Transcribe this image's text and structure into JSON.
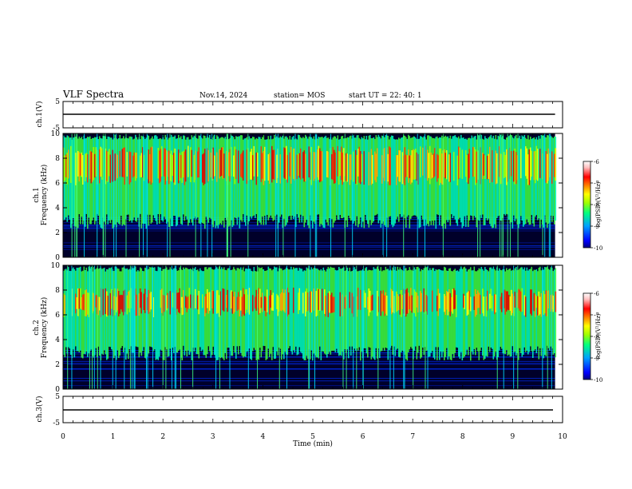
{
  "header": {
    "title": "VLF Spectra",
    "date": "Nov.14, 2024",
    "station": "station= MOS",
    "start": "start  UT  =   22: 40: 1"
  },
  "chart_data": [
    {
      "type": "line",
      "name": "ch1-waveform",
      "ylabel": "ch.1(V)",
      "ylim": [
        -5,
        5
      ],
      "y_ticks": [
        5,
        -5
      ],
      "x": [
        0,
        10
      ],
      "values": [
        0,
        0
      ]
    },
    {
      "type": "heatmap",
      "name": "ch1-spectrogram",
      "ylabel": "ch.1\nFrequency (kHz)",
      "ylabel_top": "ch.1",
      "ylabel_main": "Frequency (kHz)",
      "ylim": [
        0,
        10
      ],
      "y_ticks": [
        0,
        2,
        4,
        6,
        8,
        10
      ],
      "emission_band_khz": [
        3.5,
        9.5
      ],
      "hot_band_khz": [
        5.8,
        9.0
      ]
    },
    {
      "type": "heatmap",
      "name": "ch2-spectrogram",
      "ylabel_top": "ch.2",
      "ylabel_main": "Frequency (kHz)",
      "ylim": [
        0,
        10
      ],
      "y_ticks": [
        0,
        2,
        4,
        6,
        8,
        10
      ],
      "emission_band_khz": [
        3.5,
        9.5
      ],
      "hot_band_khz": [
        5.8,
        8.2
      ]
    },
    {
      "type": "line",
      "name": "ch3-waveform",
      "ylabel": "ch.3(V)",
      "ylim": [
        -5,
        5
      ],
      "y_ticks": [
        5,
        -5
      ],
      "x": [
        0,
        10
      ],
      "values": [
        0,
        0
      ]
    }
  ],
  "xaxis": {
    "label": "Time  (min)",
    "xlim": [
      0,
      10
    ],
    "ticks": [
      0,
      1,
      2,
      3,
      4,
      5,
      6,
      7,
      8,
      9,
      10
    ],
    "data_end_min": 9.85
  },
  "colorbar": {
    "label": "log(PSD)(V²/Hz)",
    "range": [
      -10,
      -6
    ],
    "ticks": [
      -6,
      -7,
      -8,
      -9,
      -10
    ],
    "colors": [
      "#000080",
      "#0000ff",
      "#00a0ff",
      "#00ff80",
      "#a0ff00",
      "#ffff00",
      "#ff8000",
      "#ff0000",
      "#ffc0c0",
      "#ffffff"
    ]
  }
}
